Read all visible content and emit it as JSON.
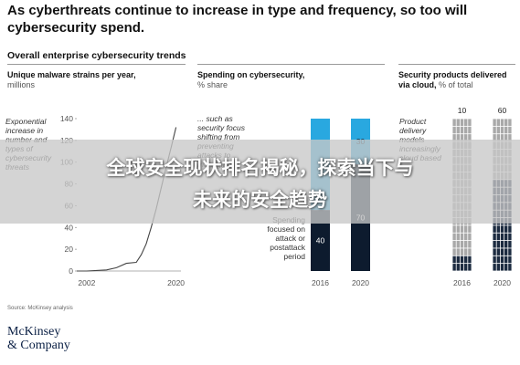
{
  "headline": "As cyberthreats continue to increase in type and frequency, so too will cybersecurity spend.",
  "subhead": "Overall enterprise cybersecurity trends",
  "source": "Source: McKinsey analysis",
  "logo": {
    "line1": "McKinsey",
    "line2": "& Company"
  },
  "overlay": {
    "line1": "全球安全现状排名揭秘，探索当下与",
    "line2": "未来的安全趋势"
  },
  "colors": {
    "line": "#444444",
    "cyan": "#29a8e0",
    "navy": "#0d1b2e",
    "gray": "#a9a9a9",
    "navy_sq": "#1c2b40"
  },
  "chart_data": [
    {
      "type": "line",
      "title_bold": "Unique malware strains per year,",
      "title_rest": "millions",
      "annotation": "Exponential increase in number and types of cybersecurity threats",
      "xlim": [
        2000,
        2021
      ],
      "ylim": [
        0,
        140
      ],
      "yticks": [
        "0",
        "20",
        "40",
        "60",
        "80",
        "100",
        "120",
        "140"
      ],
      "xticks": [
        "2002",
        "2020"
      ],
      "x": [
        2000,
        2002,
        2004,
        2006,
        2008,
        2010,
        2012,
        2013,
        2014,
        2015,
        2016,
        2017,
        2018,
        2019,
        2020
      ],
      "y": [
        0,
        0,
        0.5,
        1,
        3,
        7,
        8,
        15,
        25,
        40,
        57,
        76,
        95,
        113,
        132
      ]
    },
    {
      "type": "bar",
      "stacked": true,
      "title_bold": "Spending on cybersecurity,",
      "title_rest": "% share",
      "annotation_top": "... such as security focus shifting from preventing attacks to managing",
      "annotation_bottom": "Spending focused on attack or postattack period",
      "categories": [
        "2016",
        "2020"
      ],
      "series": [
        {
          "values": [
            40,
            70
          ]
        },
        {
          "values": [
            60,
            30
          ]
        }
      ],
      "data_labels_top": [
        "",
        "30"
      ],
      "data_labels_bottom": [
        "40",
        "70"
      ]
    },
    {
      "type": "bar",
      "title_bold": "Security products delivered via cloud,",
      "title_rest": "% of total",
      "annotation": "Product delivery models increasingly cloud based",
      "categories": [
        "2016",
        "2020"
      ],
      "values": [
        10,
        60
      ],
      "data_labels": [
        "10",
        "60"
      ]
    }
  ]
}
